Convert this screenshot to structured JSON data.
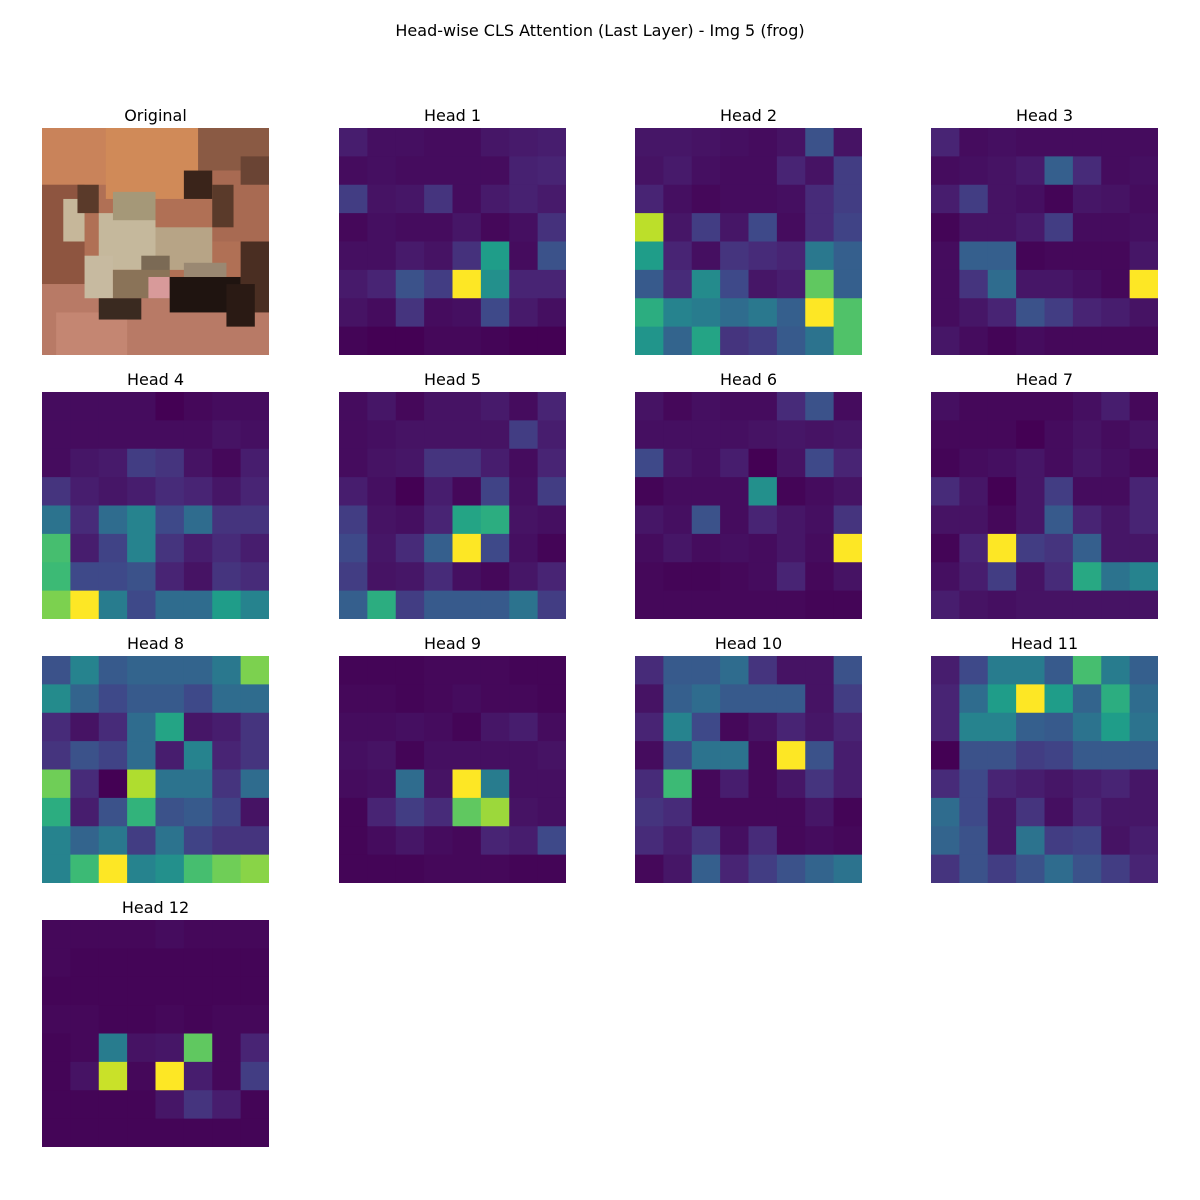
{
  "suptitle": "Head-wise CLS Attention (Last Layer) - Img 5 (frog)",
  "colormap": "viridis",
  "original": {
    "title": "Original",
    "description_colors": [
      "#b06a55",
      "#c98a5a",
      "#5a3a2a",
      "#c8b89a",
      "#2a1a14"
    ]
  },
  "chart_data": {
    "type": "heatmap",
    "colorscale": [
      "#440154",
      "#482878",
      "#3e4a89",
      "#31688e",
      "#26828e",
      "#1f9e89",
      "#35b779",
      "#6ece58",
      "#b5de2b",
      "#fde725"
    ],
    "grid": "8x8",
    "heads": [
      {
        "title": "Head 1",
        "values": [
          [
            0.08,
            0.04,
            0.04,
            0.03,
            0.03,
            0.06,
            0.07,
            0.08
          ],
          [
            0.03,
            0.04,
            0.03,
            0.03,
            0.03,
            0.03,
            0.09,
            0.1
          ],
          [
            0.18,
            0.05,
            0.06,
            0.15,
            0.03,
            0.07,
            0.09,
            0.07
          ],
          [
            0.02,
            0.04,
            0.03,
            0.03,
            0.06,
            0.02,
            0.04,
            0.14
          ],
          [
            0.04,
            0.04,
            0.07,
            0.05,
            0.14,
            0.55,
            0.03,
            0.25
          ],
          [
            0.07,
            0.1,
            0.25,
            0.18,
            1.0,
            0.5,
            0.1,
            0.1
          ],
          [
            0.05,
            0.03,
            0.15,
            0.03,
            0.04,
            0.22,
            0.07,
            0.04
          ],
          [
            0.01,
            0.0,
            0.0,
            0.02,
            0.02,
            0.01,
            0.0,
            0.0
          ]
        ]
      },
      {
        "title": "Head 2",
        "values": [
          [
            0.06,
            0.06,
            0.05,
            0.04,
            0.03,
            0.05,
            0.25,
            0.05
          ],
          [
            0.05,
            0.07,
            0.04,
            0.03,
            0.03,
            0.1,
            0.05,
            0.18
          ],
          [
            0.1,
            0.04,
            0.02,
            0.03,
            0.03,
            0.04,
            0.12,
            0.18
          ],
          [
            0.9,
            0.06,
            0.18,
            0.06,
            0.22,
            0.03,
            0.12,
            0.2
          ],
          [
            0.55,
            0.1,
            0.04,
            0.15,
            0.12,
            0.1,
            0.4,
            0.3
          ],
          [
            0.28,
            0.12,
            0.48,
            0.22,
            0.06,
            0.08,
            0.75,
            0.3
          ],
          [
            0.62,
            0.45,
            0.42,
            0.35,
            0.4,
            0.3,
            1.0,
            0.72
          ],
          [
            0.52,
            0.32,
            0.58,
            0.15,
            0.18,
            0.28,
            0.38,
            0.72
          ]
        ]
      },
      {
        "title": "Head 3",
        "values": [
          [
            0.1,
            0.03,
            0.04,
            0.03,
            0.03,
            0.03,
            0.03,
            0.03
          ],
          [
            0.03,
            0.04,
            0.05,
            0.07,
            0.3,
            0.12,
            0.03,
            0.04
          ],
          [
            0.08,
            0.18,
            0.05,
            0.04,
            0.01,
            0.06,
            0.05,
            0.03
          ],
          [
            0.01,
            0.05,
            0.05,
            0.07,
            0.18,
            0.03,
            0.03,
            0.04
          ],
          [
            0.03,
            0.3,
            0.3,
            0.01,
            0.02,
            0.02,
            0.02,
            0.06
          ],
          [
            0.03,
            0.15,
            0.35,
            0.06,
            0.06,
            0.04,
            0.02,
            1.0
          ],
          [
            0.03,
            0.06,
            0.1,
            0.25,
            0.18,
            0.1,
            0.08,
            0.05
          ],
          [
            0.06,
            0.03,
            0.01,
            0.03,
            0.02,
            0.02,
            0.02,
            0.02
          ]
        ]
      },
      {
        "title": "Head 4",
        "values": [
          [
            0.03,
            0.03,
            0.03,
            0.03,
            0.0,
            0.02,
            0.03,
            0.03
          ],
          [
            0.03,
            0.03,
            0.03,
            0.03,
            0.03,
            0.03,
            0.05,
            0.04
          ],
          [
            0.03,
            0.06,
            0.07,
            0.18,
            0.15,
            0.05,
            0.02,
            0.08
          ],
          [
            0.15,
            0.08,
            0.06,
            0.08,
            0.12,
            0.1,
            0.06,
            0.1
          ],
          [
            0.38,
            0.12,
            0.35,
            0.45,
            0.22,
            0.35,
            0.15,
            0.15
          ],
          [
            0.7,
            0.08,
            0.2,
            0.45,
            0.15,
            0.08,
            0.12,
            0.08
          ],
          [
            0.68,
            0.22,
            0.22,
            0.25,
            0.1,
            0.05,
            0.15,
            0.12
          ],
          [
            0.8,
            1.0,
            0.42,
            0.22,
            0.35,
            0.35,
            0.55,
            0.45
          ]
        ]
      },
      {
        "title": "Head 5",
        "values": [
          [
            0.03,
            0.06,
            0.02,
            0.05,
            0.05,
            0.07,
            0.03,
            0.1
          ],
          [
            0.03,
            0.04,
            0.05,
            0.05,
            0.05,
            0.05,
            0.18,
            0.08
          ],
          [
            0.03,
            0.05,
            0.06,
            0.15,
            0.15,
            0.08,
            0.03,
            0.1
          ],
          [
            0.08,
            0.04,
            0.0,
            0.08,
            0.02,
            0.2,
            0.04,
            0.18
          ],
          [
            0.18,
            0.05,
            0.04,
            0.1,
            0.58,
            0.62,
            0.05,
            0.04
          ],
          [
            0.22,
            0.06,
            0.12,
            0.3,
            1.0,
            0.22,
            0.04,
            0.01
          ],
          [
            0.18,
            0.05,
            0.06,
            0.12,
            0.04,
            0.02,
            0.06,
            0.1
          ],
          [
            0.3,
            0.62,
            0.18,
            0.28,
            0.28,
            0.28,
            0.38,
            0.18
          ]
        ]
      },
      {
        "title": "Head 6",
        "values": [
          [
            0.05,
            0.02,
            0.04,
            0.03,
            0.03,
            0.12,
            0.25,
            0.03
          ],
          [
            0.04,
            0.04,
            0.04,
            0.04,
            0.05,
            0.06,
            0.05,
            0.06
          ],
          [
            0.22,
            0.06,
            0.04,
            0.08,
            0.0,
            0.05,
            0.22,
            0.1
          ],
          [
            0.01,
            0.03,
            0.03,
            0.03,
            0.5,
            0.01,
            0.03,
            0.05
          ],
          [
            0.06,
            0.04,
            0.25,
            0.03,
            0.1,
            0.06,
            0.04,
            0.15
          ],
          [
            0.03,
            0.06,
            0.03,
            0.04,
            0.03,
            0.06,
            0.03,
            1.0
          ],
          [
            0.02,
            0.01,
            0.01,
            0.02,
            0.03,
            0.1,
            0.02,
            0.05
          ],
          [
            0.02,
            0.02,
            0.02,
            0.02,
            0.02,
            0.02,
            0.01,
            0.01
          ]
        ]
      },
      {
        "title": "Head 7",
        "values": [
          [
            0.04,
            0.02,
            0.02,
            0.02,
            0.02,
            0.04,
            0.08,
            0.02
          ],
          [
            0.02,
            0.02,
            0.02,
            0.0,
            0.03,
            0.05,
            0.03,
            0.05
          ],
          [
            0.01,
            0.03,
            0.04,
            0.06,
            0.03,
            0.06,
            0.04,
            0.02
          ],
          [
            0.12,
            0.06,
            0.0,
            0.06,
            0.18,
            0.03,
            0.03,
            0.1
          ],
          [
            0.05,
            0.05,
            0.02,
            0.06,
            0.28,
            0.1,
            0.06,
            0.1
          ],
          [
            0.01,
            0.1,
            1.0,
            0.18,
            0.15,
            0.3,
            0.06,
            0.06
          ],
          [
            0.04,
            0.08,
            0.18,
            0.05,
            0.12,
            0.6,
            0.38,
            0.45
          ],
          [
            0.08,
            0.05,
            0.04,
            0.05,
            0.05,
            0.05,
            0.05,
            0.05
          ]
        ]
      },
      {
        "title": "Head 8",
        "values": [
          [
            0.25,
            0.45,
            0.28,
            0.32,
            0.32,
            0.32,
            0.4,
            0.8
          ],
          [
            0.48,
            0.32,
            0.22,
            0.28,
            0.28,
            0.22,
            0.35,
            0.35
          ],
          [
            0.12,
            0.05,
            0.12,
            0.35,
            0.58,
            0.06,
            0.08,
            0.15
          ],
          [
            0.15,
            0.25,
            0.2,
            0.35,
            0.08,
            0.45,
            0.1,
            0.15
          ],
          [
            0.78,
            0.12,
            0.0,
            0.88,
            0.38,
            0.38,
            0.15,
            0.35
          ],
          [
            0.62,
            0.08,
            0.25,
            0.65,
            0.25,
            0.28,
            0.2,
            0.05
          ],
          [
            0.45,
            0.32,
            0.4,
            0.18,
            0.38,
            0.2,
            0.15,
            0.15
          ],
          [
            0.45,
            0.68,
            1.0,
            0.45,
            0.5,
            0.7,
            0.78,
            0.82
          ]
        ]
      },
      {
        "title": "Head 9",
        "values": [
          [
            0.01,
            0.01,
            0.01,
            0.02,
            0.02,
            0.02,
            0.01,
            0.01
          ],
          [
            0.02,
            0.02,
            0.01,
            0.02,
            0.03,
            0.02,
            0.02,
            0.01
          ],
          [
            0.03,
            0.03,
            0.04,
            0.03,
            0.01,
            0.06,
            0.08,
            0.03
          ],
          [
            0.04,
            0.05,
            0.01,
            0.04,
            0.04,
            0.04,
            0.04,
            0.05
          ],
          [
            0.03,
            0.04,
            0.35,
            0.05,
            1.0,
            0.42,
            0.04,
            0.04
          ],
          [
            0.01,
            0.1,
            0.18,
            0.12,
            0.75,
            0.85,
            0.05,
            0.04
          ],
          [
            0.01,
            0.03,
            0.06,
            0.03,
            0.02,
            0.1,
            0.08,
            0.22
          ],
          [
            0.01,
            0.01,
            0.01,
            0.02,
            0.02,
            0.02,
            0.01,
            0.01
          ]
        ]
      },
      {
        "title": "Head 10",
        "values": [
          [
            0.12,
            0.28,
            0.28,
            0.35,
            0.15,
            0.05,
            0.05,
            0.25
          ],
          [
            0.05,
            0.3,
            0.35,
            0.28,
            0.28,
            0.28,
            0.05,
            0.18
          ],
          [
            0.1,
            0.45,
            0.22,
            0.02,
            0.05,
            0.1,
            0.06,
            0.1
          ],
          [
            0.03,
            0.22,
            0.38,
            0.38,
            0.02,
            1.0,
            0.25,
            0.08
          ],
          [
            0.12,
            0.68,
            0.02,
            0.08,
            0.02,
            0.06,
            0.15,
            0.08
          ],
          [
            0.15,
            0.12,
            0.02,
            0.02,
            0.02,
            0.02,
            0.06,
            0.01
          ],
          [
            0.12,
            0.08,
            0.15,
            0.04,
            0.12,
            0.02,
            0.03,
            0.02
          ],
          [
            0.02,
            0.06,
            0.3,
            0.1,
            0.18,
            0.25,
            0.32,
            0.38
          ]
        ]
      },
      {
        "title": "Head 11",
        "values": [
          [
            0.08,
            0.22,
            0.42,
            0.42,
            0.28,
            0.7,
            0.42,
            0.3
          ],
          [
            0.1,
            0.35,
            0.55,
            1.0,
            0.55,
            0.32,
            0.62,
            0.35
          ],
          [
            0.1,
            0.45,
            0.45,
            0.3,
            0.28,
            0.38,
            0.55,
            0.38
          ],
          [
            0.0,
            0.25,
            0.25,
            0.18,
            0.2,
            0.28,
            0.28,
            0.28
          ],
          [
            0.12,
            0.22,
            0.1,
            0.08,
            0.06,
            0.08,
            0.1,
            0.06
          ],
          [
            0.35,
            0.22,
            0.06,
            0.15,
            0.04,
            0.1,
            0.06,
            0.06
          ],
          [
            0.32,
            0.25,
            0.06,
            0.38,
            0.18,
            0.2,
            0.05,
            0.08
          ],
          [
            0.15,
            0.25,
            0.18,
            0.25,
            0.35,
            0.25,
            0.18,
            0.1
          ]
        ]
      },
      {
        "title": "Head 12",
        "values": [
          [
            0.02,
            0.02,
            0.02,
            0.02,
            0.03,
            0.02,
            0.02,
            0.02
          ],
          [
            0.02,
            0.01,
            0.01,
            0.01,
            0.01,
            0.01,
            0.01,
            0.01
          ],
          [
            0.01,
            0.01,
            0.01,
            0.01,
            0.01,
            0.01,
            0.01,
            0.01
          ],
          [
            0.02,
            0.02,
            0.01,
            0.01,
            0.02,
            0.01,
            0.02,
            0.02
          ],
          [
            0.01,
            0.02,
            0.42,
            0.05,
            0.06,
            0.75,
            0.02,
            0.1
          ],
          [
            0.01,
            0.05,
            0.92,
            0.02,
            1.0,
            0.08,
            0.02,
            0.18
          ],
          [
            0.01,
            0.01,
            0.01,
            0.01,
            0.06,
            0.15,
            0.08,
            0.01
          ],
          [
            0.01,
            0.01,
            0.01,
            0.01,
            0.01,
            0.01,
            0.01,
            0.01
          ]
        ]
      }
    ]
  }
}
